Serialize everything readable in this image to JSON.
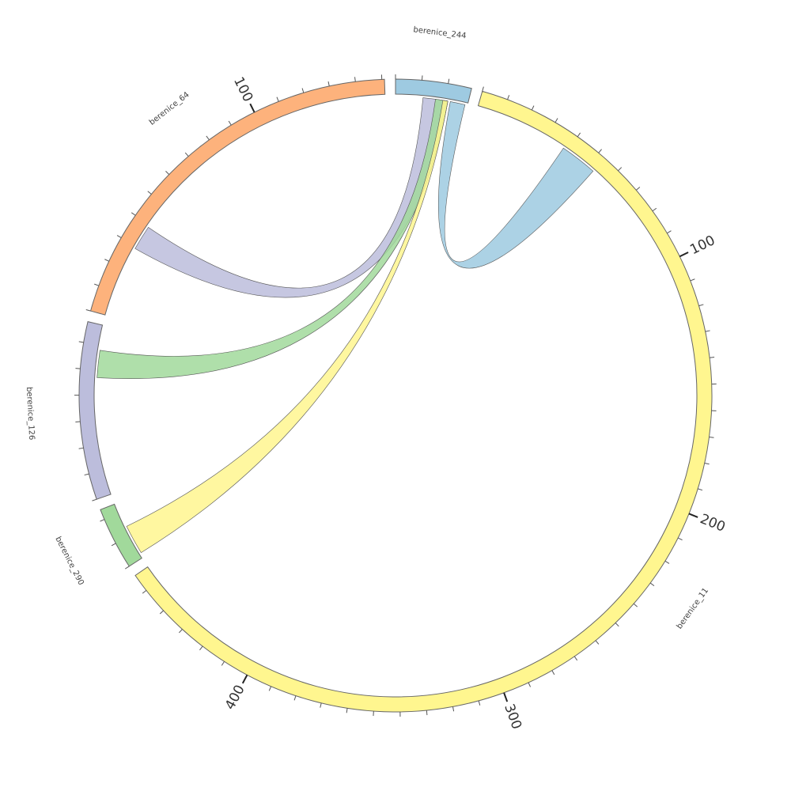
{
  "chart_data": {
    "type": "chord",
    "sectors": [
      {
        "name": "berenice_244",
        "color": "#9ecae1",
        "length": 29,
        "tick_step": 10,
        "ticks": []
      },
      {
        "name": "berenice_11",
        "color": "#fff68f",
        "length": 457,
        "tick_step": 10,
        "ticks": [
          100,
          200,
          300,
          400
        ]
      },
      {
        "name": "berenice_290",
        "color": "#a1d99b",
        "length": 24,
        "tick_step": 10,
        "ticks": []
      },
      {
        "name": "berenice_126",
        "color": "#bcbddc",
        "length": 68,
        "tick_step": 10,
        "ticks": []
      },
      {
        "name": "berenice_64",
        "color": "#fdb27c",
        "length": 151,
        "tick_step": 10,
        "ticks": [
          100
        ]
      }
    ],
    "links": [
      {
        "source": "berenice_244",
        "source_range": [
          22,
          28
        ],
        "target": "berenice_11",
        "target_range": [
          38,
          53
        ],
        "color": "#9ecae1"
      },
      {
        "source": "berenice_64",
        "source_range": [
          29,
          39
        ],
        "target": "berenice_244",
        "target_range": [
          11,
          21
        ],
        "color": "#bcbddc"
      },
      {
        "source": "berenice_126",
        "source_range": [
          47,
          58
        ],
        "target": "berenice_244",
        "target_range": [
          16,
          21
        ],
        "color": "#a1d99b"
      },
      {
        "source": "berenice_290",
        "source_range": [
          2,
          14
        ],
        "target": "berenice_244",
        "target_range": [
          19,
          21
        ],
        "color": "#fff68f"
      }
    ]
  }
}
